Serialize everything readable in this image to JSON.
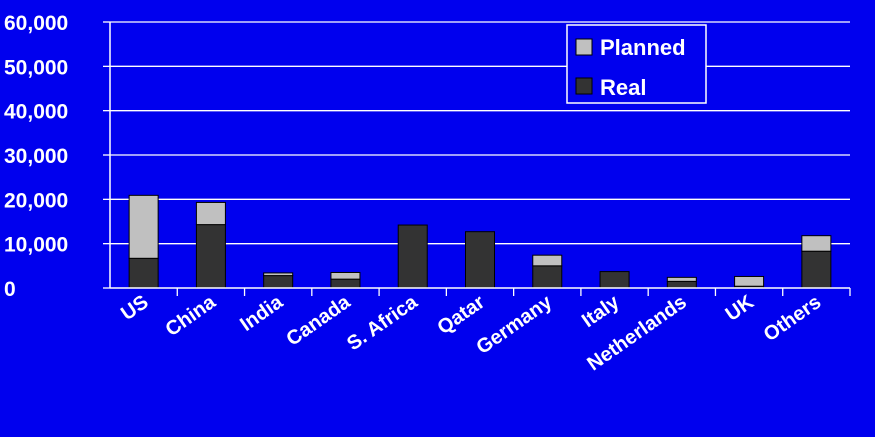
{
  "chart_data": {
    "type": "bar",
    "stacked": true,
    "categories": [
      "US",
      "China",
      "India",
      "Canada",
      "S. Africa",
      "Qatar",
      "Germany",
      "Italy",
      "Netherlands",
      "UK",
      "Others"
    ],
    "series": [
      {
        "name": "Real",
        "color": "#333333",
        "values": [
          6700,
          14300,
          2800,
          2000,
          14200,
          12700,
          5000,
          3700,
          1500,
          400,
          8300
        ]
      },
      {
        "name": "Planned",
        "color": "#c0c0c0",
        "values": [
          14200,
          5000,
          600,
          1500,
          0,
          0,
          2400,
          0,
          900,
          2200,
          3500
        ]
      }
    ],
    "ylim": [
      0,
      60000
    ],
    "yticks": [
      "0",
      "10,000",
      "20,000",
      "30,000",
      "40,000",
      "50,000",
      "60,000"
    ],
    "grid": true,
    "legend": {
      "position": "top-right",
      "entries": [
        "Planned",
        "Real"
      ]
    }
  }
}
